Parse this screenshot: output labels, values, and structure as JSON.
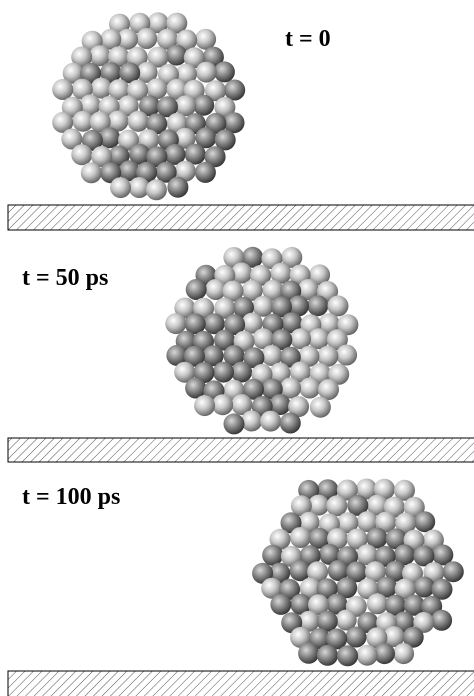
{
  "panels": [
    {
      "label": "t = 0"
    },
    {
      "label": "t = 50 ps"
    },
    {
      "label": "t = 100 ps"
    }
  ]
}
